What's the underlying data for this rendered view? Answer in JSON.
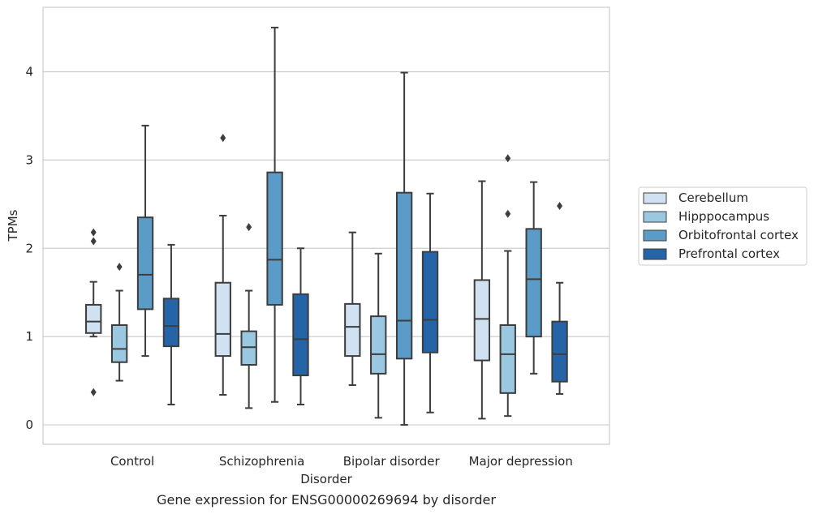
{
  "caption": "Gene expression for ENSG00000269694 by disorder",
  "chart_data": {
    "type": "box",
    "xlabel": "Disorder",
    "ylabel": "TPMs",
    "ylim": [
      -0.22,
      4.73
    ],
    "yticks": [
      0,
      1,
      2,
      3,
      4
    ],
    "grid": "horizontal",
    "legend_position": "right",
    "categories": [
      "Control",
      "Schizophrenia",
      "Bipolar disorder",
      "Major depression"
    ],
    "series": [
      {
        "name": "Cerebellum",
        "color": "#d0e1f2",
        "boxes": [
          {
            "whislo": 1.0,
            "q1": 1.04,
            "med": 1.17,
            "q3": 1.36,
            "whishi": 1.62,
            "fliers": [
              2.18,
              2.08,
              0.37
            ]
          },
          {
            "whislo": 0.34,
            "q1": 0.78,
            "med": 1.03,
            "q3": 1.61,
            "whishi": 2.37,
            "fliers": [
              3.25
            ]
          },
          {
            "whislo": 0.45,
            "q1": 0.78,
            "med": 1.11,
            "q3": 1.37,
            "whishi": 2.18,
            "fliers": []
          },
          {
            "whislo": 0.07,
            "q1": 0.73,
            "med": 1.2,
            "q3": 1.64,
            "whishi": 2.76,
            "fliers": []
          }
        ]
      },
      {
        "name": "Hipppocampus",
        "color": "#9ac8e0",
        "boxes": [
          {
            "whislo": 0.5,
            "q1": 0.71,
            "med": 0.86,
            "q3": 1.13,
            "whishi": 1.52,
            "fliers": [
              1.79
            ]
          },
          {
            "whislo": 0.19,
            "q1": 0.68,
            "med": 0.88,
            "q3": 1.06,
            "whishi": 1.52,
            "fliers": [
              2.24
            ]
          },
          {
            "whislo": 0.08,
            "q1": 0.58,
            "med": 0.8,
            "q3": 1.23,
            "whishi": 1.94,
            "fliers": []
          },
          {
            "whislo": 0.1,
            "q1": 0.36,
            "med": 0.8,
            "q3": 1.13,
            "whishi": 1.97,
            "fliers": [
              3.02,
              2.39
            ]
          }
        ]
      },
      {
        "name": "Orbitofrontal cortex",
        "color": "#5a9bc8",
        "boxes": [
          {
            "whislo": 0.78,
            "q1": 1.31,
            "med": 1.7,
            "q3": 2.35,
            "whishi": 3.39,
            "fliers": []
          },
          {
            "whislo": 0.26,
            "q1": 1.36,
            "med": 1.87,
            "q3": 2.86,
            "whishi": 4.5,
            "fliers": []
          },
          {
            "whislo": 0.0,
            "q1": 0.75,
            "med": 1.18,
            "q3": 2.63,
            "whishi": 3.99,
            "fliers": []
          },
          {
            "whislo": 0.58,
            "q1": 1.0,
            "med": 1.65,
            "q3": 2.22,
            "whishi": 2.75,
            "fliers": []
          }
        ]
      },
      {
        "name": "Prefrontal cortex",
        "color": "#2664a8",
        "boxes": [
          {
            "whislo": 0.23,
            "q1": 0.89,
            "med": 1.12,
            "q3": 1.43,
            "whishi": 2.04,
            "fliers": []
          },
          {
            "whislo": 0.23,
            "q1": 0.56,
            "med": 0.97,
            "q3": 1.48,
            "whishi": 2.0,
            "fliers": []
          },
          {
            "whislo": 0.14,
            "q1": 0.82,
            "med": 1.19,
            "q3": 1.96,
            "whishi": 2.62,
            "fliers": []
          },
          {
            "whislo": 0.35,
            "q1": 0.49,
            "med": 0.8,
            "q3": 1.17,
            "whishi": 1.61,
            "fliers": [
              2.48
            ]
          }
        ]
      }
    ]
  }
}
